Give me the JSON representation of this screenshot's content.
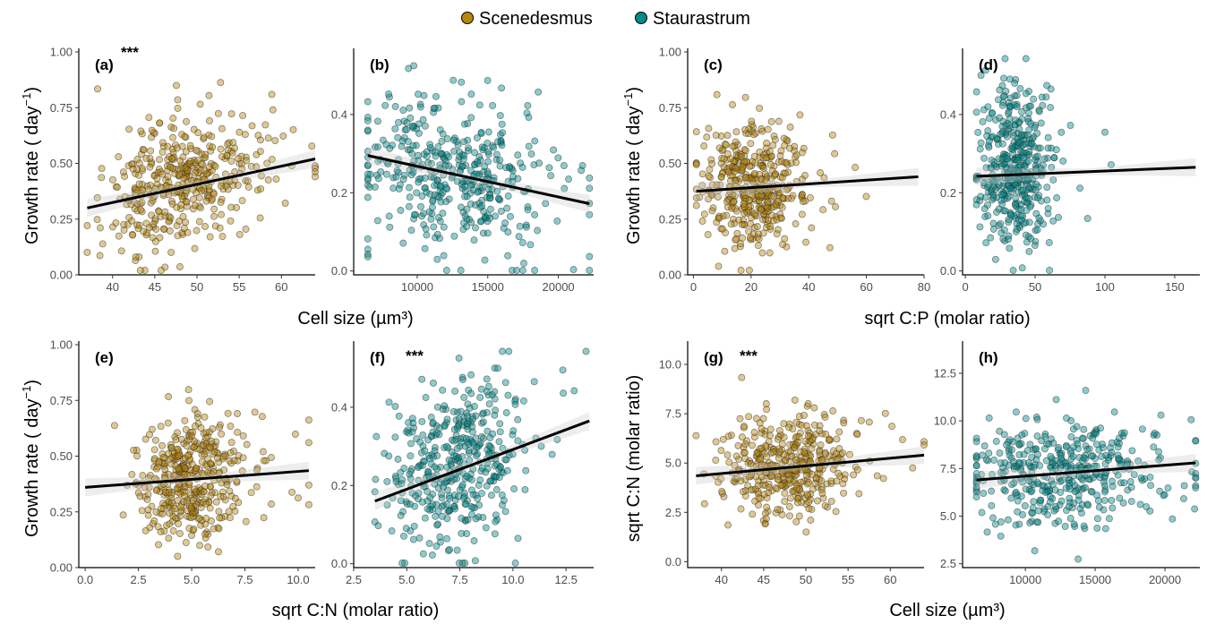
{
  "legend": {
    "items": [
      {
        "label": "Scenedesmus",
        "color": "#b8860b"
      },
      {
        "label": "Staurastrum",
        "color": "#008b8b"
      }
    ]
  },
  "axis_titles": {
    "growth_rate": "Growth rate ( day",
    "growth_rate_exp": "−1",
    "growth_rate_close": ")",
    "cell_size": "Cell size (µm³)",
    "sqrt_cp": "sqrt C:P (molar ratio)",
    "sqrt_cn": "sqrt C:N (molar ratio)",
    "sqrt_cn_y": "sqrt C:N (molar ratio)"
  },
  "chart_data": [
    {
      "id": "a",
      "tag": "(a)",
      "stars": "***",
      "type": "scatter",
      "species": "Scenedesmus",
      "color": "#b8860b",
      "xlim": [
        36,
        64
      ],
      "ylim": [
        0,
        1
      ],
      "xticks": [
        40,
        45,
        50,
        55,
        60
      ],
      "yticks": [
        0.0,
        0.25,
        0.5,
        0.75,
        1.0
      ],
      "fit": {
        "x": [
          37,
          64
        ],
        "y": [
          0.3,
          0.52
        ]
      },
      "x_center": 48,
      "x_spread": 4.5,
      "y_center": 0.42,
      "y_spread": 0.15,
      "n": 420,
      "xlabel": "",
      "ylabel": "Growth rate"
    },
    {
      "id": "b",
      "tag": "(b)",
      "stars": "",
      "type": "scatter",
      "species": "Staurastrum",
      "color": "#008b8b",
      "xlim": [
        5500,
        22500
      ],
      "ylim": [
        -0.01,
        0.56
      ],
      "xticks": [
        10000,
        15000,
        20000
      ],
      "yticks": [
        0.0,
        0.2,
        0.4
      ],
      "fit": {
        "x": [
          6500,
          22200
        ],
        "y": [
          0.295,
          0.172
        ]
      },
      "x_center": 12500,
      "x_spread": 3500,
      "y_center": 0.25,
      "y_spread": 0.1,
      "n": 420,
      "xlabel": "",
      "ylabel": ""
    },
    {
      "id": "c",
      "tag": "(c)",
      "stars": "",
      "type": "scatter",
      "species": "Scenedesmus",
      "color": "#b8860b",
      "xlim": [
        -2,
        80
      ],
      "ylim": [
        0,
        1
      ],
      "xticks": [
        0,
        20,
        40,
        60,
        80
      ],
      "yticks": [
        0.0,
        0.25,
        0.5,
        0.75,
        1.0
      ],
      "fit": {
        "x": [
          1,
          78
        ],
        "y": [
          0.375,
          0.44
        ]
      },
      "x_center": 20,
      "x_spread": 9,
      "y_center": 0.4,
      "y_spread": 0.14,
      "n": 420,
      "xlabel": "",
      "ylabel": "Growth rate"
    },
    {
      "id": "d",
      "tag": "(d)",
      "stars": "",
      "type": "scatter",
      "species": "Staurastrum",
      "color": "#008b8b",
      "xlim": [
        -2,
        168
      ],
      "ylim": [
        -0.01,
        0.56
      ],
      "xticks": [
        0,
        50,
        100,
        150
      ],
      "yticks": [
        0.0,
        0.2,
        0.4
      ],
      "fit": {
        "x": [
          8,
          165
        ],
        "y": [
          0.242,
          0.265
        ]
      },
      "x_center": 35,
      "x_spread": 13,
      "y_center": 0.26,
      "y_spread": 0.1,
      "n": 420,
      "xlabel": "",
      "ylabel": ""
    },
    {
      "id": "e",
      "tag": "(e)",
      "stars": "",
      "type": "scatter",
      "species": "Scenedesmus",
      "color": "#b8860b",
      "xlim": [
        -0.3,
        10.8
      ],
      "ylim": [
        0,
        1
      ],
      "xticks": [
        0.0,
        2.5,
        5.0,
        7.5,
        10.0
      ],
      "yticks": [
        0.0,
        0.25,
        0.5,
        0.75,
        1.0
      ],
      "fit": {
        "x": [
          0,
          10.5
        ],
        "y": [
          0.36,
          0.435
        ]
      },
      "x_center": 4.9,
      "x_spread": 1.3,
      "y_center": 0.41,
      "y_spread": 0.14,
      "n": 420,
      "xlabel": "sqrt C:N (molar ratio)",
      "ylabel": "Growth rate"
    },
    {
      "id": "f",
      "tag": "(f)",
      "stars": "***",
      "type": "scatter",
      "species": "Staurastrum",
      "color": "#008b8b",
      "xlim": [
        2.5,
        13.8
      ],
      "ylim": [
        -0.01,
        0.56
      ],
      "xticks": [
        2.5,
        5.0,
        7.5,
        10.0,
        12.5
      ],
      "yticks": [
        0.0,
        0.2,
        0.4
      ],
      "fit": {
        "x": [
          3.5,
          13.6
        ],
        "y": [
          0.16,
          0.365
        ]
      },
      "x_center": 7.3,
      "x_spread": 1.5,
      "y_center": 0.26,
      "y_spread": 0.1,
      "n": 420,
      "xlabel": "",
      "ylabel": ""
    },
    {
      "id": "g",
      "tag": "(g)",
      "stars": "***",
      "type": "scatter",
      "species": "Scenedesmus",
      "color": "#b8860b",
      "xlim": [
        36,
        64
      ],
      "ylim": [
        -0.3,
        11
      ],
      "xticks": [
        40,
        45,
        50,
        55,
        60
      ],
      "yticks": [
        0.0,
        2.5,
        5.0,
        7.5,
        10.0
      ],
      "fit": {
        "x": [
          37,
          64
        ],
        "y": [
          4.35,
          5.4
        ]
      },
      "x_center": 48,
      "x_spread": 4,
      "y_center": 4.8,
      "y_spread": 1.2,
      "n": 420,
      "xlabel": "Cell size (µm³)",
      "ylabel": "sqrt C:N (molar ratio)"
    },
    {
      "id": "h",
      "tag": "(h)",
      "stars": "",
      "type": "scatter",
      "species": "Staurastrum",
      "color": "#008b8b",
      "xlim": [
        5500,
        22500
      ],
      "ylim": [
        2.3,
        14
      ],
      "xticks": [
        10000,
        15000,
        20000
      ],
      "yticks": [
        2.5,
        5.0,
        7.5,
        10.0,
        12.5
      ],
      "fit": {
        "x": [
          6500,
          22200
        ],
        "y": [
          6.9,
          7.8
        ]
      },
      "x_center": 12500,
      "x_spread": 3500,
      "y_center": 7.3,
      "y_spread": 1.4,
      "n": 420,
      "xlabel": "",
      "ylabel": ""
    }
  ]
}
